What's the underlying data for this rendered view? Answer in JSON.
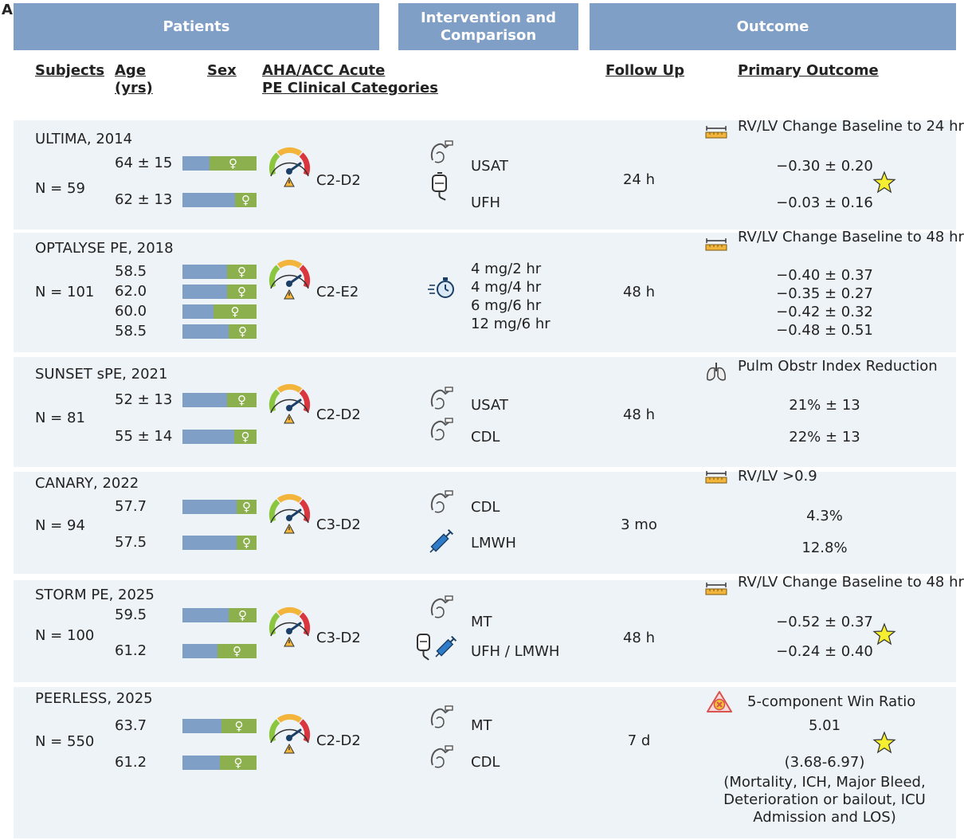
{
  "panel_letter": "A",
  "headers": {
    "patients": "Patients",
    "intervention": "Intervention and\nComparison",
    "outcome": "Outcome",
    "subjects": "Subjects",
    "age": "Age\n(yrs)",
    "sex": "Sex",
    "aha": "AHA/ACC Acute\nPE Clinical Categories",
    "follow_up": "Follow Up",
    "primary_outcome": "Primary Outcome"
  },
  "colors": {
    "header_band": "#7f9fc6",
    "male_bar": "#7f9fc6",
    "female_bar": "#8cb04e",
    "row_bg": "#eef3f8",
    "star": "#f5ef2f"
  },
  "female_symbol": "♀",
  "rows": [
    {
      "study": "ULTIMA, 2014",
      "n": "N =  59",
      "ages": [
        "64 ± 15",
        "62 ± 13"
      ],
      "male_fraction": [
        0.37,
        0.71
      ],
      "category": "C2-D2",
      "interventions": [
        {
          "icon": "catheter-icon",
          "label": "USAT"
        },
        {
          "icon": "iv-bag-icon",
          "label": "UFH"
        }
      ],
      "follow_up": "24 h",
      "outcome_icon": "ruler-icon",
      "outcome_title": "RV/LV Change Baseline to 24 hr",
      "values": [
        "−0.30 ± 0.20",
        "−0.03 ± 0.16"
      ],
      "star": true
    },
    {
      "study": "OPTALYSE PE, 2018",
      "n": "N = 101",
      "ages": [
        "58.5",
        "62.0",
        "60.0",
        "58.5"
      ],
      "male_fraction": [
        0.6,
        0.6,
        0.42,
        0.62
      ],
      "category": "C2-E2",
      "interventions": [
        {
          "icon": "stopwatch-icon",
          "label": "4 mg/2 hr"
        },
        {
          "label": "4 mg/4 hr"
        },
        {
          "label": "6 mg/6 hr"
        },
        {
          "label": "12 mg/6 hr"
        }
      ],
      "follow_up": "48 h",
      "outcome_icon": "ruler-icon",
      "outcome_title": "RV/LV Change Baseline to 48 hr",
      "values": [
        "−0.40 ± 0.37",
        "−0.35 ± 0.27",
        "−0.42 ± 0.32",
        "−0.48 ± 0.51"
      ],
      "star": false
    },
    {
      "study": "SUNSET sPE, 2021",
      "n": "N = 81",
      "ages": [
        "52 ± 13",
        "55 ± 14"
      ],
      "male_fraction": [
        0.6,
        0.7
      ],
      "category": "C2-D2",
      "interventions": [
        {
          "icon": "catheter-icon",
          "label": "USAT"
        },
        {
          "icon": "catheter-icon",
          "label": "CDL"
        }
      ],
      "follow_up": "48 h",
      "outcome_icon": "lungs-icon",
      "outcome_title": "Pulm Obstr Index Reduction",
      "values": [
        "21% ± 13",
        "22% ± 13"
      ],
      "star": false
    },
    {
      "study": "CANARY, 2022",
      "n": "N = 94",
      "ages": [
        "57.7",
        "57.5"
      ],
      "male_fraction": [
        0.73,
        0.73
      ],
      "category": "C3-D2",
      "interventions": [
        {
          "icon": "catheter-icon",
          "label": "CDL"
        },
        {
          "icon": "syringe-icon",
          "label": "LMWH"
        }
      ],
      "follow_up": "3 mo",
      "outcome_icon": "ruler-icon",
      "outcome_title": "RV/LV >0.9",
      "values": [
        "4.3%",
        "12.8%"
      ],
      "star": false
    },
    {
      "study": "STORM PE, 2025",
      "n": "N = 100",
      "ages": [
        "59.5",
        "61.2"
      ],
      "male_fraction": [
        0.62,
        0.47
      ],
      "category": "C3-D2",
      "interventions": [
        {
          "icon": "catheter-icon",
          "label": "MT"
        },
        {
          "icon": "iv-bag-syringe-icon",
          "label": "UFH / LMWH"
        }
      ],
      "follow_up": "48 h",
      "outcome_icon": "ruler-icon",
      "outcome_title": "RV/LV Change Baseline to 48 hr",
      "values": [
        "−0.52 ± 0.37",
        "−0.24 ± 0.40"
      ],
      "star": true
    },
    {
      "study": "PEERLESS, 2025",
      "n": "N = 550",
      "ages": [
        "63.7",
        "61.2"
      ],
      "male_fraction": [
        0.53,
        0.5
      ],
      "category": "C2-D2",
      "interventions": [
        {
          "icon": "catheter-icon",
          "label": "MT"
        },
        {
          "icon": "catheter-icon",
          "label": "CDL"
        }
      ],
      "follow_up": "7 d",
      "outcome_icon": "warning-x-icon",
      "outcome_title": "5-component Win Ratio",
      "values": [
        "5.01",
        "(3.68-6.97)",
        "(Mortality, ICH, Major Bleed,",
        "Deterioration or bailout, ICU",
        "Admission and LOS)"
      ],
      "star": true
    }
  ]
}
